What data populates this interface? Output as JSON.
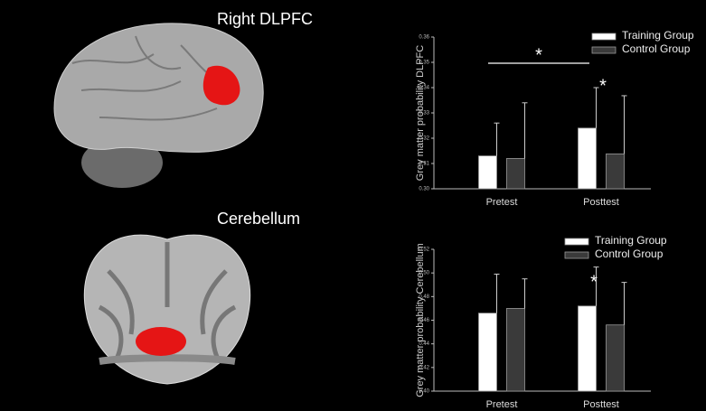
{
  "image_labels": [
    "Right DLPFC",
    "Cerebellum"
  ],
  "chart_data": [
    {
      "type": "bar",
      "ylabel": "Grey matter probability DLPFC",
      "categories": [
        "Pretest",
        "Posttest"
      ],
      "series": [
        {
          "name": "Training Group",
          "color": "#ffffff",
          "values": [
            0.313,
            0.324
          ],
          "errors": [
            0.013,
            0.016
          ]
        },
        {
          "name": "Control Group",
          "color": "#3a3a3a",
          "values": [
            0.312,
            0.3138
          ],
          "errors": [
            0.022,
            0.023
          ]
        }
      ],
      "ylim": [
        0.3,
        0.36
      ],
      "yticks": [
        {
          "value": 0.3,
          "label": "0.30"
        },
        0.31,
        0.32,
        0.33,
        0.34,
        0.35,
        0.36
      ],
      "annotations": [
        "*",
        "*"
      ],
      "legend": "upper right"
    },
    {
      "type": "bar",
      "ylabel": "Grey matter probability Cerebellum",
      "categories": [
        "Pretest",
        "Posttest"
      ],
      "series": [
        {
          "name": "Training Group",
          "color": "#ffffff",
          "values": [
            0.466,
            0.472
          ],
          "errors": [
            0.033,
            0.033
          ]
        },
        {
          "name": "Control Group",
          "color": "#3a3a3a",
          "values": [
            0.47,
            0.456
          ],
          "errors": [
            0.025,
            0.036
          ]
        }
      ],
      "ylim": [
        0.4,
        0.52
      ],
      "yticks": [
        {
          "value": 0.4,
          "label": "0.40"
        },
        0.42,
        0.44,
        0.46,
        0.48,
        {
          "value": 0.5,
          "label": "0.50"
        },
        0.52
      ],
      "annotations": [
        "*"
      ],
      "legend": "upper right"
    }
  ]
}
